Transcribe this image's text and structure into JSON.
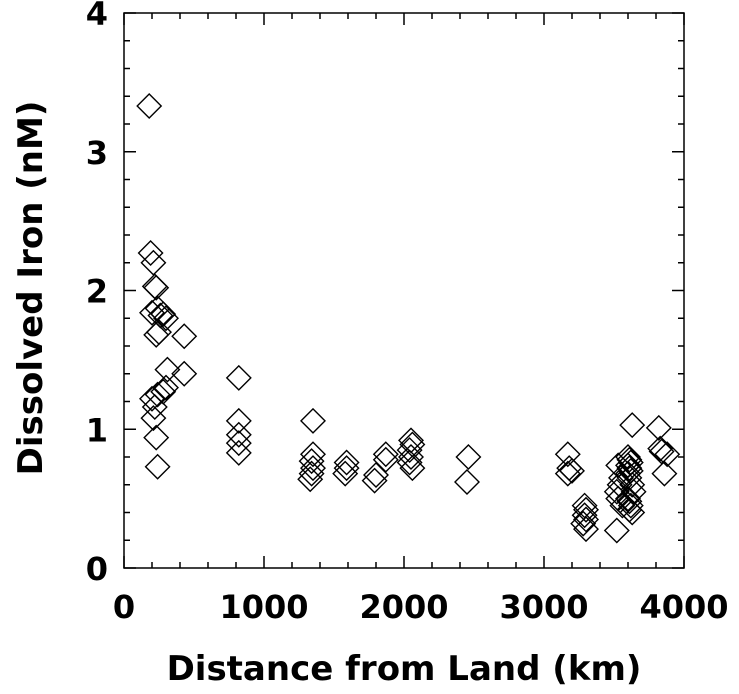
{
  "chart_data": {
    "type": "scatter",
    "xlabel": "Distance from Land (km)",
    "ylabel": "Dissolved Iron (nM)",
    "xlim": [
      0,
      4000
    ],
    "ylim": [
      0,
      4
    ],
    "xticks": [
      "0",
      "1000",
      "2000",
      "3000",
      "4000"
    ],
    "yticks": [
      "0",
      "1",
      "2",
      "3",
      "4"
    ],
    "marker": "diamond-open",
    "grid": false,
    "series": [
      {
        "points": [
          [
            180,
            3.33
          ],
          [
            190,
            2.27
          ],
          [
            210,
            2.2
          ],
          [
            220,
            2.03
          ],
          [
            230,
            2.02
          ],
          [
            200,
            1.84
          ],
          [
            240,
            1.87
          ],
          [
            260,
            1.82
          ],
          [
            280,
            1.83
          ],
          [
            300,
            1.8
          ],
          [
            230,
            1.68
          ],
          [
            250,
            1.7
          ],
          [
            430,
            1.67
          ],
          [
            200,
            1.22
          ],
          [
            220,
            1.16
          ],
          [
            240,
            1.25
          ],
          [
            280,
            1.27
          ],
          [
            300,
            1.3
          ],
          [
            310,
            1.43
          ],
          [
            430,
            1.4
          ],
          [
            210,
            1.08
          ],
          [
            230,
            0.94
          ],
          [
            240,
            0.73
          ],
          [
            820,
            1.37
          ],
          [
            820,
            1.06
          ],
          [
            820,
            0.96
          ],
          [
            820,
            0.9
          ],
          [
            820,
            0.83
          ],
          [
            1350,
            1.06
          ],
          [
            1350,
            0.82
          ],
          [
            1340,
            0.77
          ],
          [
            1350,
            0.72
          ],
          [
            1340,
            0.68
          ],
          [
            1330,
            0.64
          ],
          [
            1590,
            0.76
          ],
          [
            1590,
            0.72
          ],
          [
            1580,
            0.68
          ],
          [
            1800,
            0.67
          ],
          [
            1790,
            0.63
          ],
          [
            1870,
            0.82
          ],
          [
            1870,
            0.78
          ],
          [
            2050,
            0.92
          ],
          [
            2060,
            0.89
          ],
          [
            2040,
            0.85
          ],
          [
            2050,
            0.8
          ],
          [
            2040,
            0.76
          ],
          [
            2060,
            0.72
          ],
          [
            2460,
            0.8
          ],
          [
            2450,
            0.62
          ],
          [
            3170,
            0.82
          ],
          [
            3180,
            0.72
          ],
          [
            3170,
            0.68
          ],
          [
            3200,
            0.7
          ],
          [
            3290,
            0.45
          ],
          [
            3300,
            0.42
          ],
          [
            3290,
            0.38
          ],
          [
            3300,
            0.35
          ],
          [
            3280,
            0.32
          ],
          [
            3300,
            0.28
          ],
          [
            3520,
            0.27
          ],
          [
            3530,
            0.74
          ],
          [
            3550,
            0.65
          ],
          [
            3540,
            0.6
          ],
          [
            3520,
            0.55
          ],
          [
            3530,
            0.5
          ],
          [
            3560,
            0.45
          ],
          [
            3600,
            0.8
          ],
          [
            3610,
            0.78
          ],
          [
            3620,
            0.76
          ],
          [
            3600,
            0.74
          ],
          [
            3610,
            0.72
          ],
          [
            3620,
            0.7
          ],
          [
            3600,
            0.68
          ],
          [
            3610,
            0.65
          ],
          [
            3630,
            1.03
          ],
          [
            3630,
            0.6
          ],
          [
            3640,
            0.55
          ],
          [
            3600,
            0.5
          ],
          [
            3610,
            0.48
          ],
          [
            3620,
            0.45
          ],
          [
            3610,
            0.42
          ],
          [
            3630,
            0.4
          ],
          [
            3820,
            1.01
          ],
          [
            3830,
            0.86
          ],
          [
            3840,
            0.84
          ],
          [
            3880,
            0.82
          ],
          [
            3860,
            0.68
          ]
        ]
      }
    ]
  }
}
